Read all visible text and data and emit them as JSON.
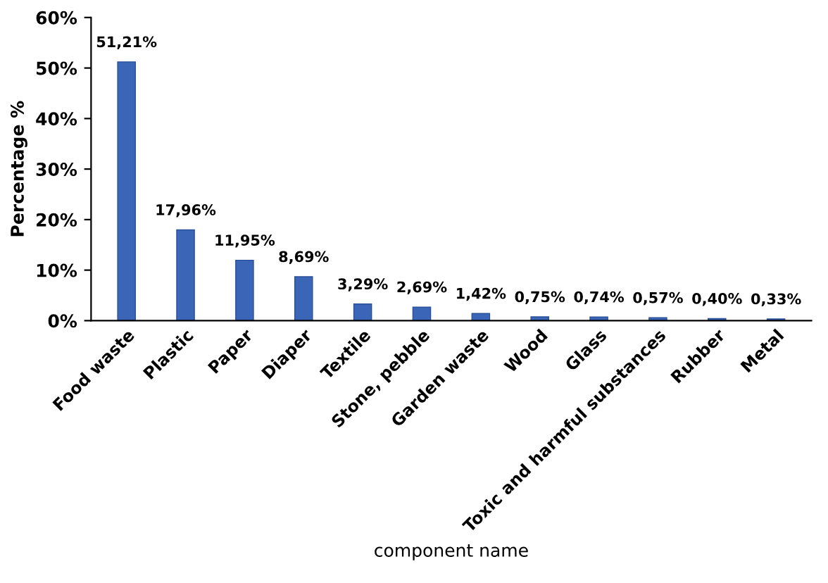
{
  "chart_data": {
    "type": "bar",
    "categories": [
      "Food waste",
      "Plastic",
      "Paper",
      "Diaper",
      "Textile",
      "Stone, pebble",
      "Garden waste",
      "Wood",
      "Glass",
      "Toxic and harmful substances",
      "Rubber",
      "Metal"
    ],
    "values": [
      51.21,
      17.96,
      11.95,
      8.69,
      3.29,
      2.69,
      1.42,
      0.75,
      0.74,
      0.57,
      0.4,
      0.33
    ],
    "value_labels": [
      "51,21%",
      "17,96%",
      "11,95%",
      "8,69%",
      "3,29%",
      "2,69%",
      "1,42%",
      "0,75%",
      "0,74%",
      "0,57%",
      "0,40%",
      "0,33%"
    ],
    "color": "#3b66b8",
    "xlabel": "component name",
    "ylabel": "Percentage %",
    "ylim": [
      0,
      60
    ],
    "yticks": [
      {
        "value": 0,
        "label": "0%"
      },
      {
        "value": 10,
        "label": "10%"
      },
      {
        "value": 20,
        "label": "20%"
      },
      {
        "value": 30,
        "label": "30%"
      },
      {
        "value": 40,
        "label": "40%"
      },
      {
        "value": 50,
        "label": "50%"
      },
      {
        "value": 60,
        "label": "60%"
      }
    ],
    "grid": false,
    "legend": false
  }
}
